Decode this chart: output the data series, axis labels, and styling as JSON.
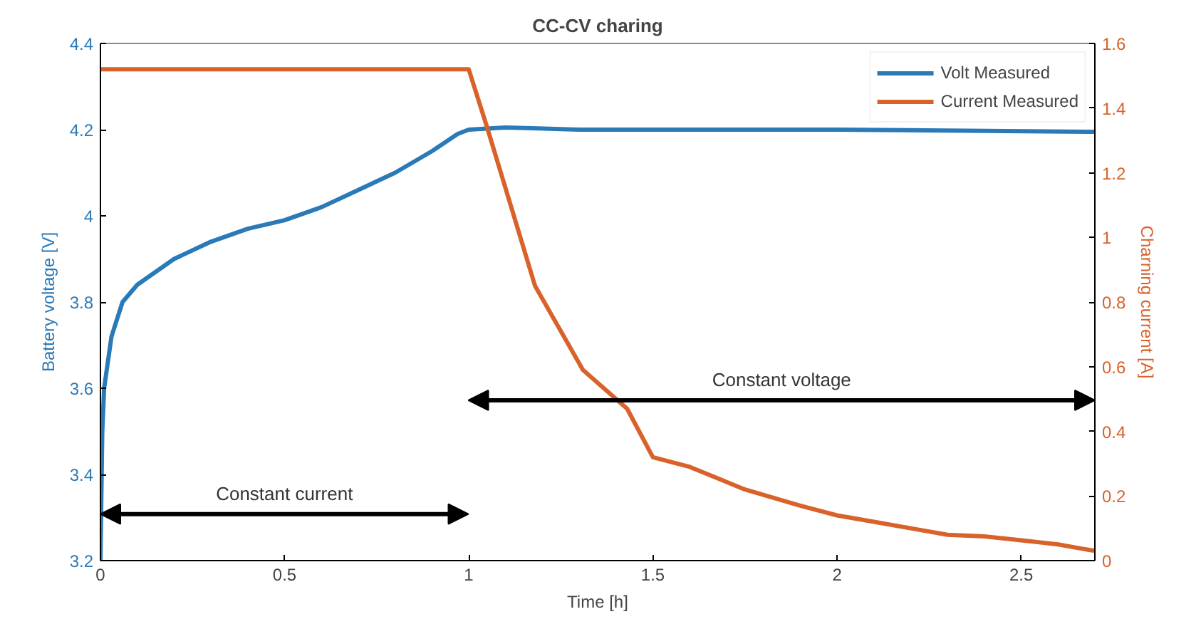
{
  "chart_data": {
    "type": "line",
    "title": "CC-CV charing",
    "xlabel": "Time [h]",
    "ylabel": "Battery voltage [V]",
    "y2label": "Charning current [A]",
    "xlim": [
      0,
      2.7
    ],
    "xticks": [
      0,
      0.5,
      1,
      1.5,
      2,
      2.5
    ],
    "ylim": [
      3.2,
      4.4
    ],
    "yticks": [
      3.2,
      3.4,
      3.6,
      3.8,
      4,
      4.2,
      4.4
    ],
    "y2lim": [
      0,
      1.6
    ],
    "y2ticks": [
      0,
      0.2,
      0.4,
      0.6,
      0.8,
      1,
      1.2,
      1.4,
      1.6
    ],
    "grid": false,
    "legend": "top right",
    "series": [
      {
        "name": "Volt Measured",
        "color": "#2a7ab8",
        "x": [
          0,
          0.005,
          0.01,
          0.03,
          0.06,
          0.1,
          0.2,
          0.3,
          0.4,
          0.5,
          0.6,
          0.7,
          0.8,
          0.9,
          0.97,
          1.0,
          1.1,
          1.3,
          2.0,
          2.7
        ],
        "values": [
          3.2,
          3.5,
          3.6,
          3.72,
          3.8,
          3.84,
          3.9,
          3.94,
          3.97,
          3.99,
          4.02,
          4.06,
          4.1,
          4.15,
          4.19,
          4.2,
          4.205,
          4.2,
          4.2,
          4.195
        ]
      },
      {
        "name": "Current Measured",
        "color": "#d9622b",
        "axis": "y2",
        "x": [
          0,
          0.5,
          1.0,
          1.05,
          1.18,
          1.31,
          1.43,
          1.5,
          1.6,
          1.75,
          1.9,
          2.0,
          2.1,
          2.2,
          2.3,
          2.4,
          2.5,
          2.6,
          2.7
        ],
        "values": [
          1.52,
          1.52,
          1.52,
          1.34,
          0.85,
          0.59,
          0.47,
          0.32,
          0.29,
          0.22,
          0.17,
          0.14,
          0.12,
          0.1,
          0.08,
          0.075,
          0.063,
          0.05,
          0.03
        ]
      }
    ],
    "annotations": [
      "Constant current",
      "Constant voltage"
    ]
  }
}
